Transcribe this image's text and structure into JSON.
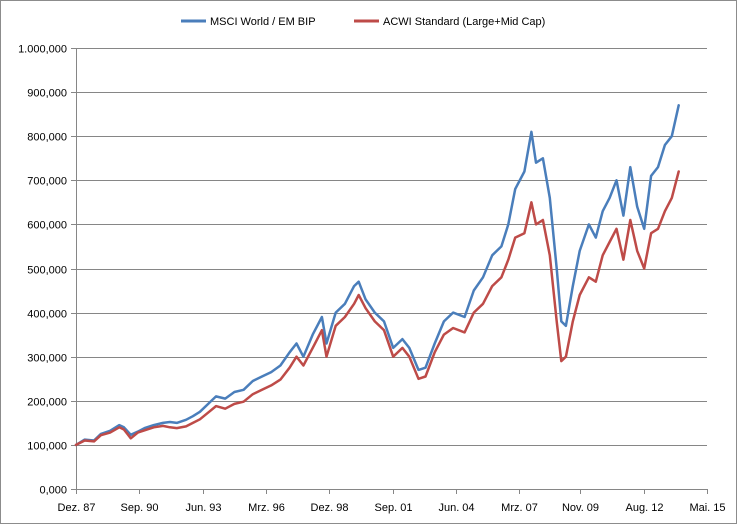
{
  "chart_data": {
    "type": "line",
    "title": "",
    "xlabel": "",
    "ylabel": "",
    "ylim": [
      0,
      1000000
    ],
    "y_ticks": [
      0,
      100000,
      200000,
      300000,
      400000,
      500000,
      600000,
      700000,
      800000,
      900000,
      1000000
    ],
    "y_tick_labels": [
      "0,000",
      "100,000",
      "200,000",
      "300,000",
      "400,000",
      "500,000",
      "600,000",
      "700,000",
      "800,000",
      "900,000",
      "1.000,000"
    ],
    "xlim": [
      1987.92,
      2015.33
    ],
    "x_ticks": [
      1987.92,
      1990.67,
      1993.42,
      1996.17,
      1998.92,
      2001.67,
      2004.42,
      2007.17,
      2009.83,
      2012.58,
      2015.33
    ],
    "x_tick_labels": [
      "Dez. 87",
      "Sep. 90",
      "Jun. 93",
      "Mrz. 96",
      "Dez. 98",
      "Sep. 01",
      "Jun. 04",
      "Mrz. 07",
      "Nov. 09",
      "Aug. 12",
      "Mai. 15"
    ],
    "grid": true,
    "legend": "top-center",
    "series": [
      {
        "name": "MSCI World / EM BIP",
        "color": "#4a7ebb",
        "x": [
          1987.92,
          1988.3,
          1988.7,
          1989.0,
          1989.4,
          1989.8,
          1990.0,
          1990.3,
          1990.6,
          1990.9,
          1991.3,
          1991.7,
          1992.0,
          1992.3,
          1992.7,
          1993.0,
          1993.3,
          1993.7,
          1994.0,
          1994.4,
          1994.8,
          1995.2,
          1995.6,
          1996.0,
          1996.4,
          1996.8,
          1997.2,
          1997.5,
          1997.8,
          1998.2,
          1998.6,
          1998.8,
          1999.2,
          1999.6,
          2000.0,
          2000.2,
          2000.5,
          2000.9,
          2001.3,
          2001.7,
          2002.1,
          2002.4,
          2002.8,
          2003.1,
          2003.5,
          2003.9,
          2004.3,
          2004.8,
          2005.2,
          2005.6,
          2006.0,
          2006.4,
          2006.7,
          2007.0,
          2007.4,
          2007.7,
          2007.9,
          2008.2,
          2008.5,
          2008.8,
          2009.0,
          2009.2,
          2009.5,
          2009.8,
          2010.2,
          2010.5,
          2010.8,
          2011.1,
          2011.4,
          2011.7,
          2012.0,
          2012.3,
          2012.6,
          2012.9,
          2013.2,
          2013.5,
          2013.8,
          2014.1
        ],
        "values": [
          100000,
          112000,
          110000,
          125000,
          132000,
          145000,
          140000,
          123000,
          130000,
          138000,
          145000,
          150000,
          152000,
          150000,
          157000,
          165000,
          175000,
          195000,
          210000,
          205000,
          220000,
          225000,
          245000,
          255000,
          265000,
          280000,
          310000,
          330000,
          300000,
          350000,
          390000,
          330000,
          400000,
          420000,
          460000,
          470000,
          430000,
          400000,
          380000,
          320000,
          340000,
          320000,
          270000,
          275000,
          330000,
          380000,
          400000,
          390000,
          450000,
          480000,
          530000,
          550000,
          600000,
          680000,
          720000,
          810000,
          740000,
          750000,
          660000,
          500000,
          380000,
          370000,
          460000,
          540000,
          600000,
          570000,
          630000,
          660000,
          700000,
          620000,
          730000,
          640000,
          590000,
          710000,
          730000,
          780000,
          800000,
          870000
        ]
      },
      {
        "name": "ACWI Standard (Large+Mid Cap)",
        "color": "#be4b48",
        "x": [
          1987.92,
          1988.3,
          1988.7,
          1989.0,
          1989.4,
          1989.8,
          1990.0,
          1990.3,
          1990.6,
          1990.9,
          1991.3,
          1991.7,
          1992.0,
          1992.3,
          1992.7,
          1993.0,
          1993.3,
          1993.7,
          1994.0,
          1994.4,
          1994.8,
          1995.2,
          1995.6,
          1996.0,
          1996.4,
          1996.8,
          1997.2,
          1997.5,
          1997.8,
          1998.2,
          1998.6,
          1998.8,
          1999.2,
          1999.6,
          2000.0,
          2000.2,
          2000.5,
          2000.9,
          2001.3,
          2001.7,
          2002.1,
          2002.4,
          2002.8,
          2003.1,
          2003.5,
          2003.9,
          2004.3,
          2004.8,
          2005.2,
          2005.6,
          2006.0,
          2006.4,
          2006.7,
          2007.0,
          2007.4,
          2007.7,
          2007.9,
          2008.2,
          2008.5,
          2008.8,
          2009.0,
          2009.2,
          2009.5,
          2009.8,
          2010.2,
          2010.5,
          2010.8,
          2011.1,
          2011.4,
          2011.7,
          2012.0,
          2012.3,
          2012.6,
          2012.9,
          2013.2,
          2013.5,
          2013.8,
          2014.1
        ],
        "values": [
          100000,
          110000,
          108000,
          122000,
          128000,
          140000,
          135000,
          115000,
          128000,
          133000,
          140000,
          143000,
          140000,
          138000,
          142000,
          150000,
          158000,
          175000,
          188000,
          182000,
          193000,
          198000,
          215000,
          225000,
          235000,
          248000,
          275000,
          300000,
          280000,
          320000,
          360000,
          300000,
          370000,
          390000,
          420000,
          440000,
          410000,
          380000,
          360000,
          300000,
          320000,
          300000,
          250000,
          255000,
          310000,
          350000,
          365000,
          355000,
          400000,
          420000,
          460000,
          480000,
          520000,
          570000,
          580000,
          650000,
          600000,
          610000,
          530000,
          380000,
          290000,
          300000,
          380000,
          440000,
          480000,
          470000,
          530000,
          560000,
          590000,
          520000,
          610000,
          540000,
          500000,
          580000,
          590000,
          630000,
          660000,
          720000
        ]
      }
    ]
  }
}
